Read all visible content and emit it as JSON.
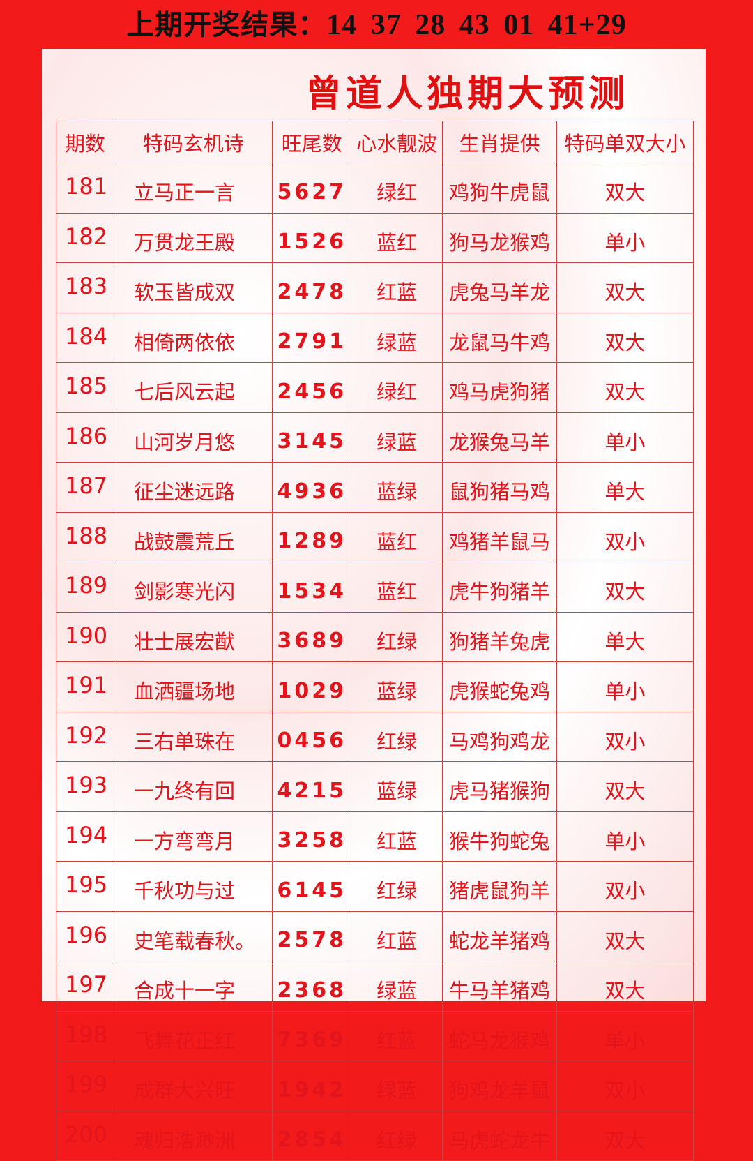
{
  "last_result": {
    "label": "上期开奖结果：",
    "numbers": "14 37 28 43 01 41+29"
  },
  "title": "曾道人独期大预测",
  "table": {
    "headers": [
      "期数",
      "特码玄机诗",
      "旺尾数",
      "心水靓波",
      "生肖提供",
      "特码单双大小"
    ],
    "rows": [
      [
        "181",
        "立马正一言",
        "5627",
        "绿红",
        "鸡狗牛虎鼠",
        "双大"
      ],
      [
        "182",
        "万贯龙王殿",
        "1526",
        "蓝红",
        "狗马龙猴鸡",
        "单小"
      ],
      [
        "183",
        "软玉皆成双",
        "2478",
        "红蓝",
        "虎兔马羊龙",
        "双大"
      ],
      [
        "184",
        "相倚两依依",
        "2791",
        "绿蓝",
        "龙鼠马牛鸡",
        "双大"
      ],
      [
        "185",
        "七后风云起",
        "2456",
        "绿红",
        "鸡马虎狗猪",
        "双大"
      ],
      [
        "186",
        "山河岁月悠",
        "3145",
        "绿蓝",
        "龙猴兔马羊",
        "单小"
      ],
      [
        "187",
        "征尘迷远路",
        "4936",
        "蓝绿",
        "鼠狗猪马鸡",
        "单大"
      ],
      [
        "188",
        "战鼓震荒丘",
        "1289",
        "蓝红",
        "鸡猪羊鼠马",
        "双小"
      ],
      [
        "189",
        "剑影寒光闪",
        "1534",
        "蓝红",
        "虎牛狗猪羊",
        "双大"
      ],
      [
        "190",
        "壮士展宏猷",
        "3689",
        "红绿",
        "狗猪羊兔虎",
        "单大"
      ],
      [
        "191",
        "血洒疆场地",
        "1029",
        "蓝绿",
        "虎猴蛇兔鸡",
        "单小"
      ],
      [
        "192",
        "三右单珠在",
        "0456",
        "红绿",
        "马鸡狗鸡龙",
        "双小"
      ],
      [
        "193",
        "一九终有回",
        "4215",
        "蓝绿",
        "虎马猪猴狗",
        "双大"
      ],
      [
        "194",
        "一方弯弯月",
        "3258",
        "红蓝",
        "猴牛狗蛇兔",
        "单小"
      ],
      [
        "195",
        "千秋功与过",
        "6145",
        "红绿",
        "猪虎鼠狗羊",
        "双小"
      ],
      [
        "196",
        "史笔载春秋。",
        "2578",
        "红蓝",
        "蛇龙羊猪鸡",
        "双大"
      ],
      [
        "197",
        "合成十一字",
        "2368",
        "绿蓝",
        "牛马羊猪鸡",
        "双大"
      ],
      [
        "198",
        "飞舞花正红",
        "7369",
        "红蓝",
        "蛇马龙猴鸡",
        "单小"
      ],
      [
        "199",
        "成群大兴旺",
        "1942",
        "绿蓝",
        "狗鸡龙羊鼠",
        "双小"
      ],
      [
        "200",
        "魂归浩渺洲",
        "2854",
        "红绿",
        "马虎蛇龙牛",
        "双大"
      ]
    ]
  },
  "colors": {
    "background": "#f21a1a",
    "text_red": "#e3141b",
    "result_text": "#111111"
  }
}
